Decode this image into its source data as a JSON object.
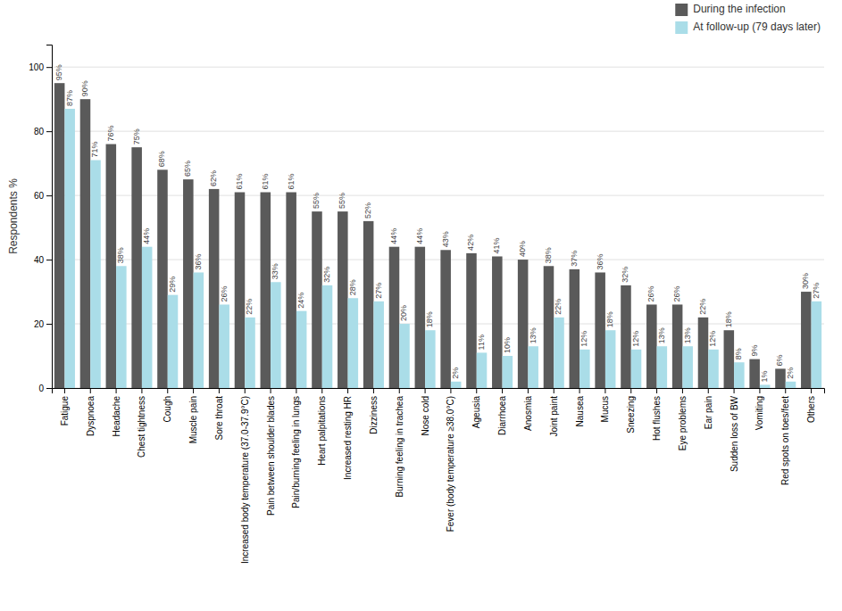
{
  "chart_data": {
    "type": "bar",
    "categories": [
      "Fatigue",
      "Dyspnoea",
      "Headache",
      "Chest tightness",
      "Cough",
      "Muscle pain",
      "Sore throat",
      "Increased body temperature (37.0-37.9°C)",
      "Pain between shoulder blades",
      "Pain/burning feeling in lungs",
      "Heart palpitations",
      "Increased resting HR",
      "Dizziness",
      "Burning feeling in trachea",
      "Nose cold",
      "Fever (body temperature ≥38.0°C)",
      "Ageusia",
      "Diarrhoea",
      "Anosmia",
      "Joint paint",
      "Nausea",
      "Mucus",
      "Sneezing",
      "Hot flushes",
      "Eye problems",
      "Ear pain",
      "Sudden loss of BW",
      "Vomiting",
      "Red spots on toes/feet",
      "Others"
    ],
    "series": [
      {
        "name": "During the infection",
        "color": "#5a5a5a",
        "values": [
          95,
          90,
          76,
          75,
          68,
          65,
          62,
          61,
          61,
          61,
          55,
          55,
          52,
          44,
          44,
          43,
          42,
          41,
          40,
          38,
          37,
          36,
          32,
          26,
          26,
          22,
          18,
          9,
          6,
          30
        ],
        "value_labels": [
          "95%",
          "90%",
          "76%",
          "75%",
          "68%",
          "65%",
          "62%",
          "61%",
          "61%",
          "61%",
          "55%",
          "55%",
          "52%",
          "44%",
          "44%",
          "43%",
          "42%",
          "41%",
          "40%",
          "38%",
          "37%",
          "36%",
          "32%",
          "26%",
          "26%",
          "22%",
          "18%",
          "9%",
          "6%",
          "30%"
        ]
      },
      {
        "name": "At follow-up (79 days later)",
        "color": "#aadde8",
        "values": [
          87,
          71,
          38,
          44,
          29,
          36,
          26,
          22,
          33,
          24,
          32,
          28,
          27,
          20,
          18,
          2,
          11,
          10,
          13,
          22,
          12,
          18,
          12,
          13,
          13,
          12,
          8,
          1,
          2,
          27
        ],
        "value_labels": [
          "87%",
          "71%",
          "38%",
          "44%",
          "29%",
          "36%",
          "26%",
          "22%",
          "33%",
          "24%",
          "32%",
          "28%",
          "27%",
          "20%",
          "18%",
          "2%",
          "11%",
          "10%",
          "13%",
          "22%",
          "12%",
          "18%",
          "12%",
          "13%",
          "13%",
          "12%",
          "8%",
          "1%",
          "2%",
          "27%"
        ]
      }
    ],
    "ylabel": "Respondents %",
    "ylim": [
      0,
      107
    ],
    "yticks": [
      0,
      20,
      40,
      60,
      80,
      100
    ],
    "grid": true,
    "legend": "upper right",
    "data_labels": true
  }
}
